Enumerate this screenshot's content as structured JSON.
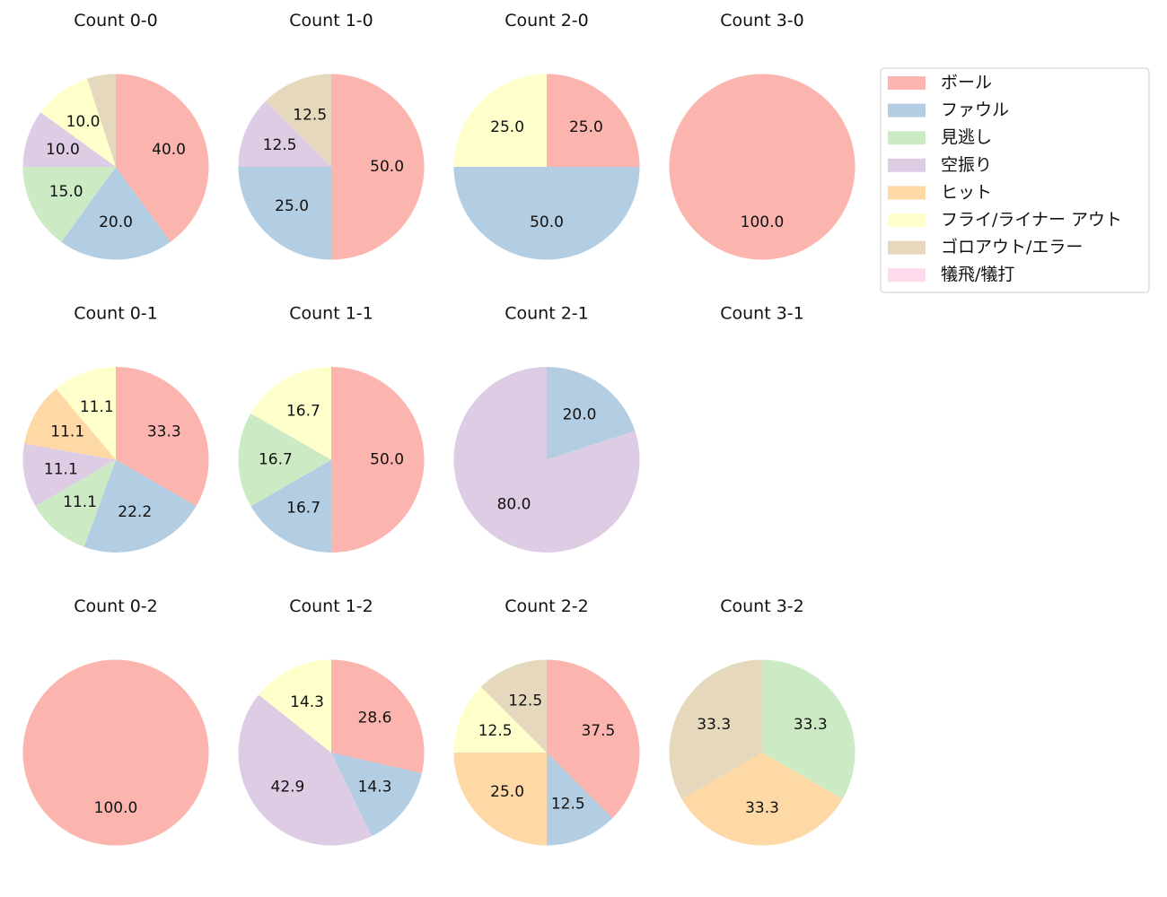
{
  "categories": [
    "ボール",
    "ファウル",
    "見逃し",
    "空振り",
    "ヒット",
    "フライ/ライナー アウト",
    "ゴロアウト/エラー",
    "犠飛/犠打"
  ],
  "colors": [
    "#fbb4ae",
    "#b3cde3",
    "#ccebc5",
    "#decbe4",
    "#fed9a6",
    "#ffffcc",
    "#e5d8bd",
    "#fddaec"
  ],
  "chart_data": [
    {
      "type": "pie",
      "title": "Count 0-0",
      "values": [
        40.0,
        20.0,
        15.0,
        10.0,
        0,
        10.0,
        5.0,
        0
      ],
      "labels": [
        "40.0",
        "20.0",
        "15.0",
        "10.0",
        "",
        "10.0",
        "",
        ""
      ]
    },
    {
      "type": "pie",
      "title": "Count 1-0",
      "values": [
        50.0,
        25.0,
        0,
        12.5,
        0,
        0,
        12.5,
        0
      ],
      "labels": [
        "50.0",
        "25.0",
        "",
        "12.5",
        "",
        "",
        "12.5",
        ""
      ]
    },
    {
      "type": "pie",
      "title": "Count 2-0",
      "values": [
        25.0,
        50.0,
        0,
        0,
        0,
        25.0,
        0,
        0
      ],
      "labels": [
        "25.0",
        "50.0",
        "",
        "",
        "",
        "25.0",
        "",
        ""
      ]
    },
    {
      "type": "pie",
      "title": "Count 3-0",
      "values": [
        100.0,
        0,
        0,
        0,
        0,
        0,
        0,
        0
      ],
      "labels": [
        "100.0",
        "",
        "",
        "",
        "",
        "",
        "",
        ""
      ]
    },
    {
      "type": "pie",
      "title": "Count 0-1",
      "values": [
        33.3,
        22.2,
        11.1,
        11.1,
        11.1,
        11.1,
        0,
        0
      ],
      "labels": [
        "33.3",
        "22.2",
        "11.1",
        "11.1",
        "11.1",
        "11.1",
        "",
        ""
      ]
    },
    {
      "type": "pie",
      "title": "Count 1-1",
      "values": [
        50.0,
        16.7,
        16.7,
        0,
        0,
        16.7,
        0,
        0
      ],
      "labels": [
        "50.0",
        "16.7",
        "16.7",
        "",
        "",
        "16.7",
        "",
        ""
      ]
    },
    {
      "type": "pie",
      "title": "Count 2-1",
      "values": [
        0,
        20.0,
        0,
        80.0,
        0,
        0,
        0,
        0
      ],
      "labels": [
        "",
        "20.0",
        "",
        "80.0",
        "",
        "",
        "",
        ""
      ]
    },
    {
      "type": "pie",
      "title": "Count 3-1",
      "values": [],
      "labels": []
    },
    {
      "type": "pie",
      "title": "Count 0-2",
      "values": [
        100.0,
        0,
        0,
        0,
        0,
        0,
        0,
        0
      ],
      "labels": [
        "100.0",
        "",
        "",
        "",
        "",
        "",
        "",
        ""
      ]
    },
    {
      "type": "pie",
      "title": "Count 1-2",
      "values": [
        28.6,
        14.3,
        0,
        42.9,
        0,
        14.3,
        0,
        0
      ],
      "labels": [
        "28.6",
        "14.3",
        "",
        "42.9",
        "",
        "14.3",
        "",
        ""
      ]
    },
    {
      "type": "pie",
      "title": "Count 2-2",
      "values": [
        37.5,
        12.5,
        0,
        0,
        25.0,
        12.5,
        12.5,
        0
      ],
      "labels": [
        "37.5",
        "12.5",
        "",
        "",
        "25.0",
        "12.5",
        "12.5",
        ""
      ]
    },
    {
      "type": "pie",
      "title": "Count 3-2",
      "values": [
        0,
        0,
        33.3,
        0,
        33.3,
        0,
        33.3,
        0
      ],
      "labels": [
        "",
        "",
        "33.3",
        "",
        "33.3",
        "",
        "33.3",
        ""
      ]
    }
  ]
}
